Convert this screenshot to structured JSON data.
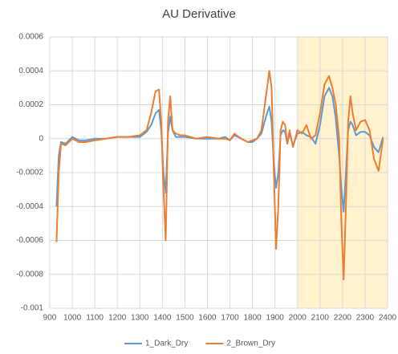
{
  "chart_data": {
    "type": "line",
    "title": "AU Derivative",
    "x": [
      930,
      940,
      950,
      970,
      1000,
      1030,
      1060,
      1100,
      1150,
      1200,
      1250,
      1300,
      1330,
      1350,
      1370,
      1385,
      1395,
      1405,
      1415,
      1425,
      1435,
      1445,
      1460,
      1480,
      1500,
      1550,
      1600,
      1650,
      1680,
      1700,
      1720,
      1750,
      1780,
      1800,
      1820,
      1840,
      1860,
      1875,
      1885,
      1895,
      1905,
      1915,
      1925,
      1935,
      1945,
      1955,
      1965,
      1980,
      2000,
      2020,
      2040,
      2060,
      2080,
      2100,
      2120,
      2140,
      2155,
      2170,
      2185,
      2195,
      2205,
      2215,
      2225,
      2235,
      2245,
      2260,
      2280,
      2300,
      2320,
      2340,
      2360,
      2380
    ],
    "series": [
      {
        "name": "1_Dark_Dry",
        "color": "#5b9bd5",
        "values": [
          -0.0004,
          -0.0001,
          -2e-05,
          -3e-05,
          1e-05,
          -1e-05,
          -1e-05,
          0,
          0,
          1e-05,
          1e-05,
          1e-05,
          4e-05,
          8e-05,
          0.00015,
          0.00017,
          5e-05,
          -0.0002,
          -0.00032,
          3e-05,
          0.00013,
          5e-05,
          1e-05,
          1e-05,
          1e-05,
          0,
          0,
          0,
          1e-05,
          -1e-05,
          2e-05,
          0,
          -2e-05,
          -2e-05,
          0,
          3e-05,
          0.00013,
          0.00019,
          0.0001,
          -0.00015,
          -0.00029,
          -0.0002,
          2e-05,
          5e-05,
          4e-05,
          -3e-05,
          3e-05,
          -4e-05,
          3e-05,
          4e-05,
          2e-05,
          1e-05,
          -3e-05,
          8e-05,
          0.00025,
          0.0003,
          0.00025,
          0.00012,
          -0.0001,
          -0.0003,
          -0.00043,
          -0.0002,
          5e-05,
          0.0001,
          8e-05,
          2e-05,
          4e-05,
          4e-05,
          2e-05,
          -5e-05,
          -8e-05,
          1e-05
        ]
      },
      {
        "name": "2_Brown_Dry",
        "color": "#ed7d31",
        "values": [
          -0.00061,
          -0.0002,
          -3e-05,
          -4e-05,
          0,
          -2e-05,
          -2e-05,
          -1e-05,
          0,
          1e-05,
          1e-05,
          2e-05,
          5e-05,
          0.00015,
          0.00028,
          0.00029,
          0.0001,
          -0.0003,
          -0.0006,
          0.0001,
          0.00025,
          5e-05,
          3e-05,
          2e-05,
          2e-05,
          0,
          1e-05,
          0,
          0,
          -1e-05,
          3e-05,
          0,
          -2e-05,
          -1e-05,
          0,
          5e-05,
          0.00025,
          0.0004,
          0.0003,
          -0.0002,
          -0.00065,
          -0.0004,
          5e-05,
          0.0001,
          8e-05,
          -3e-05,
          5e-05,
          -5e-05,
          5e-05,
          3e-05,
          8e-05,
          0,
          2e-05,
          0.00015,
          0.00032,
          0.00037,
          0.0003,
          0.0002,
          0,
          -0.0005,
          -0.00083,
          -0.0004,
          0.0001,
          0.00025,
          0.00015,
          5e-05,
          0.0001,
          0.00011,
          5e-05,
          -0.00012,
          -0.00019,
          0
        ]
      }
    ],
    "xlim": [
      900,
      2400
    ],
    "xticks": [
      900,
      1000,
      1100,
      1200,
      1300,
      1400,
      1500,
      1600,
      1700,
      1800,
      1900,
      2000,
      2100,
      2200,
      2300,
      2400
    ],
    "ylim": [
      -0.001,
      0.0006
    ],
    "yticks": [
      -0.001,
      -0.0008,
      -0.0006,
      -0.0004,
      -0.0002,
      0,
      0.0002,
      0.0004,
      0.0006
    ],
    "grid": true,
    "highlight": {
      "xrange": [
        2000,
        2400
      ],
      "color": "#fff2cc"
    },
    "legend": "bottom"
  }
}
